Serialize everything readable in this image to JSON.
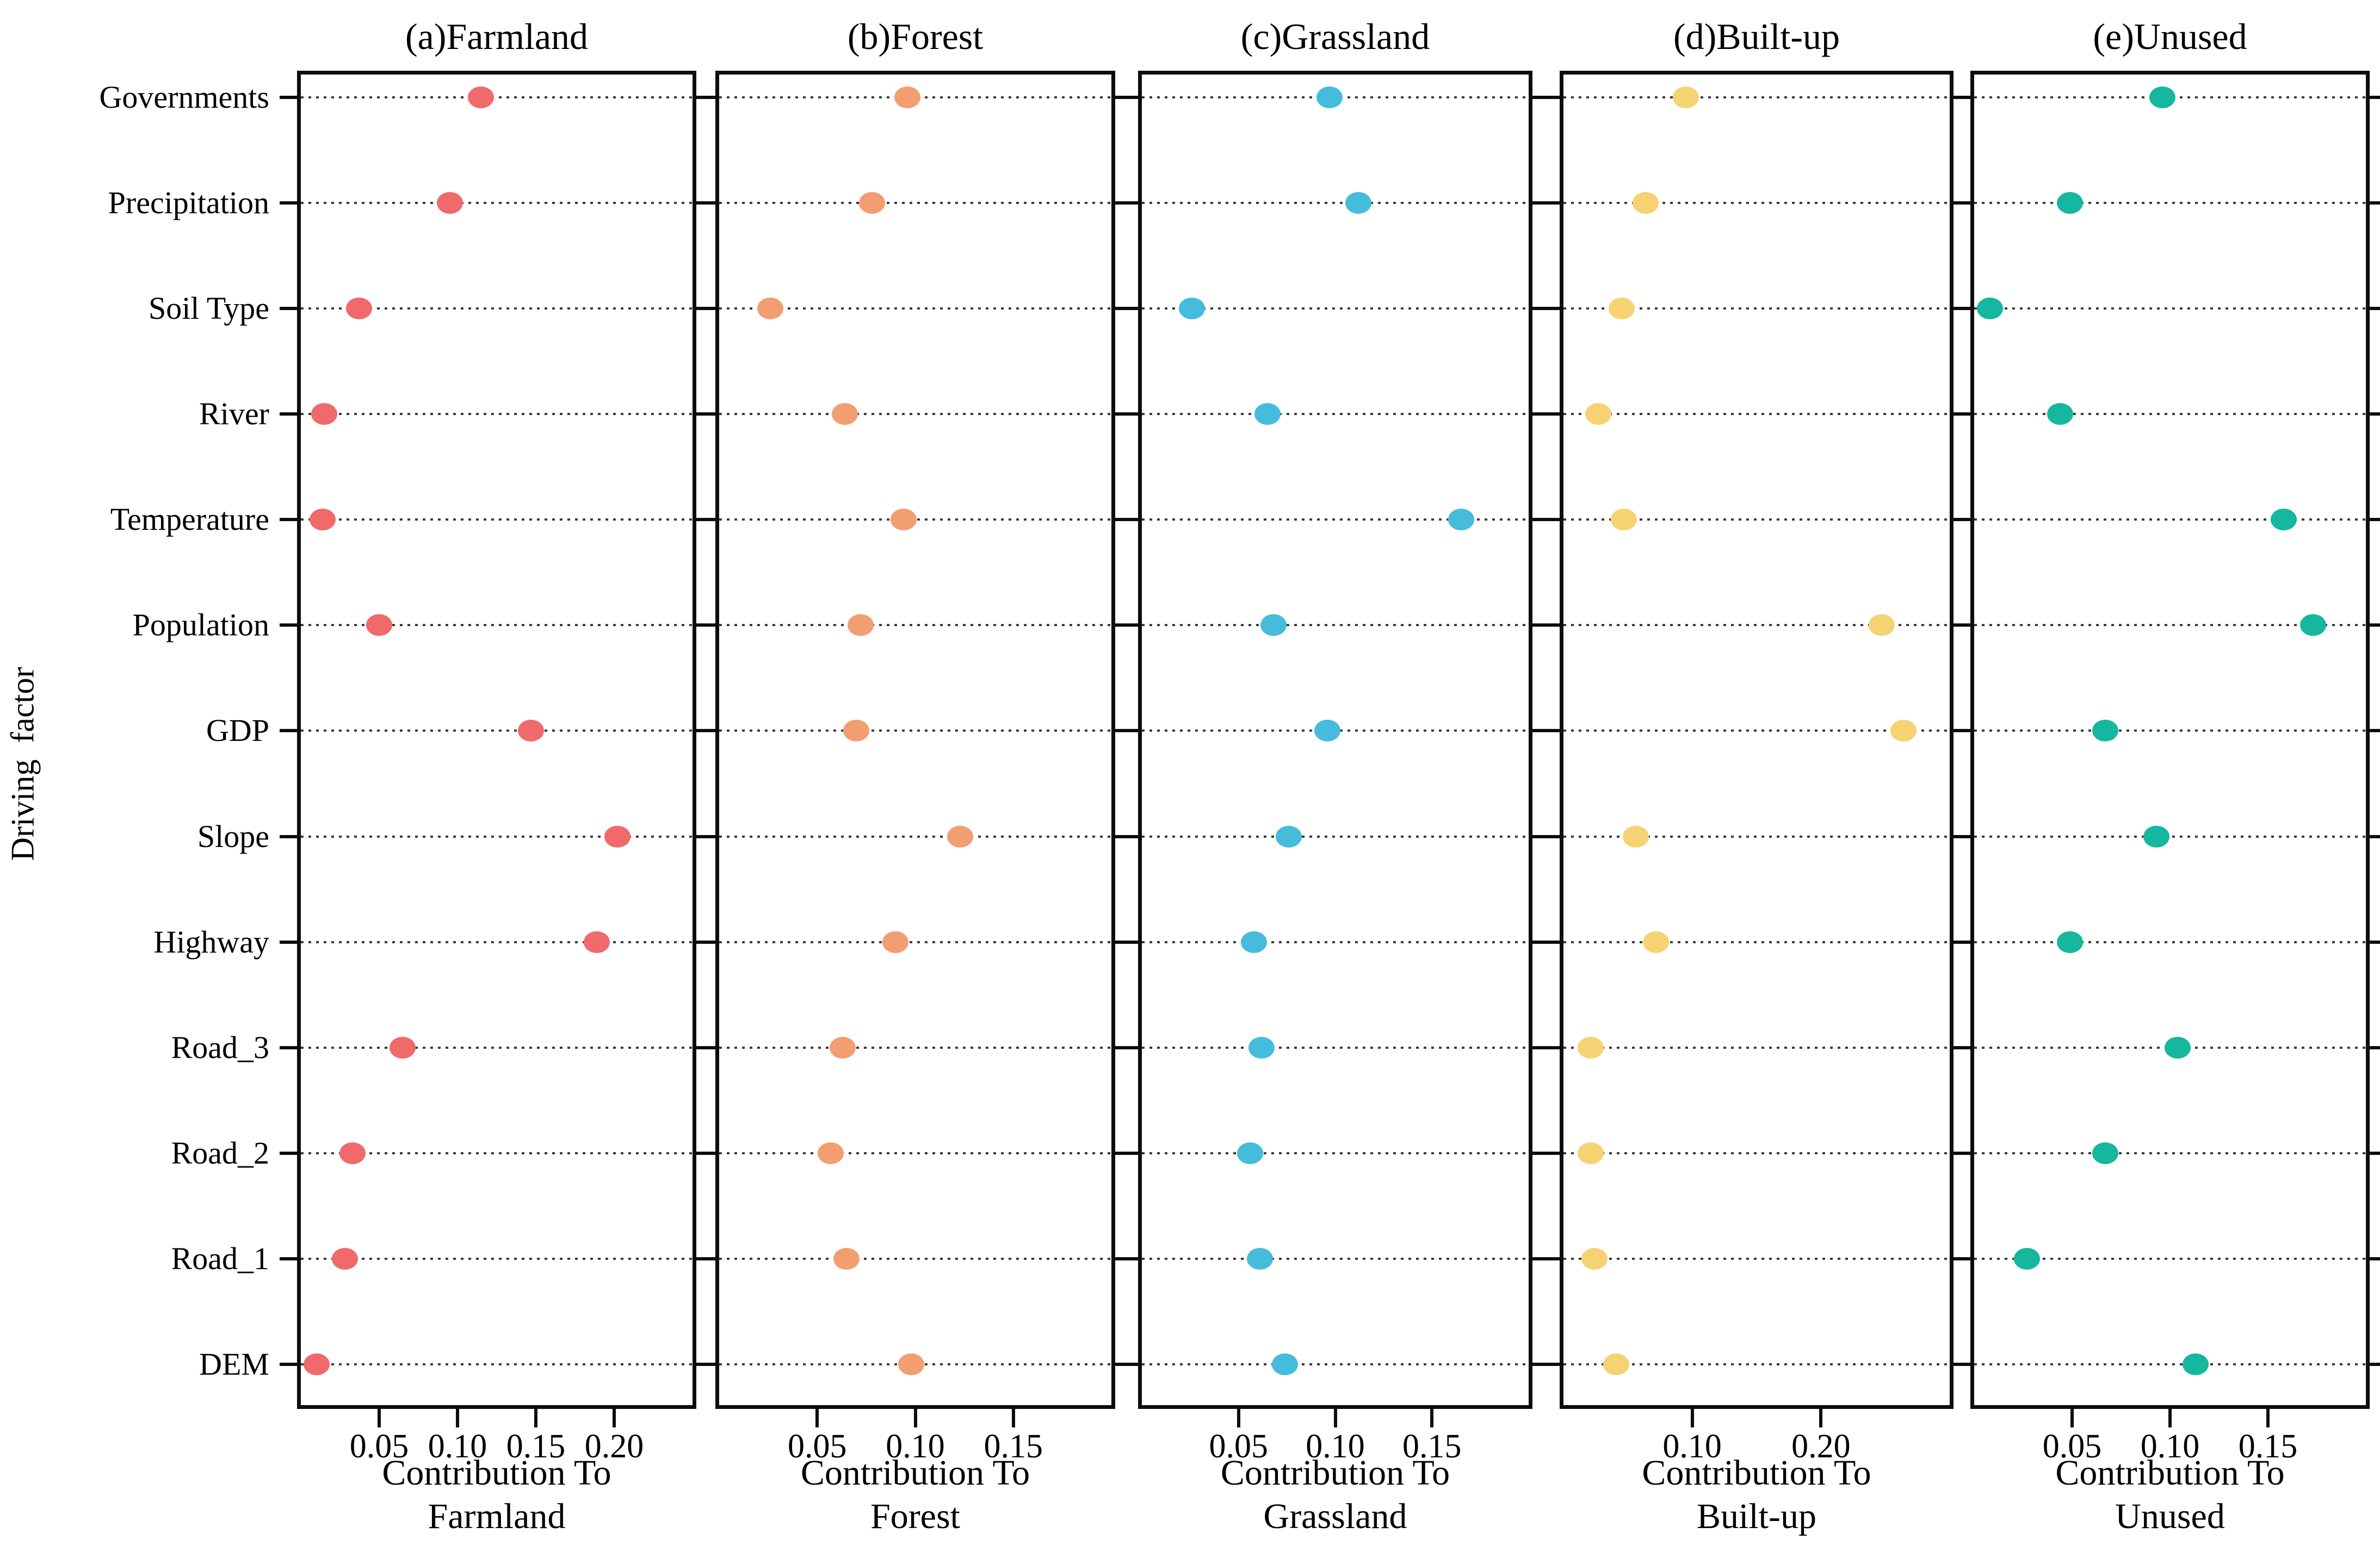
{
  "figure": {
    "ylabel": "Driving  factor",
    "categories": [
      "Governments",
      "Precipitation",
      "Soil Type",
      "River",
      "Temperature",
      "Population",
      "GDP",
      "Slope",
      "Highway",
      "Road_3",
      "Road_2",
      "Road_1",
      "DEM"
    ],
    "grid": "dotted-horizontal",
    "legend": "none"
  },
  "chart_data": [
    {
      "type": "scatter",
      "title": "(a)Farmland",
      "xlabel": "Contribution To\nFarmland",
      "marker_color": "#F0696B",
      "xlim": [
        0,
        0.25
      ],
      "xticks": [
        "0.05",
        "0.10",
        "0.15",
        "0.20"
      ],
      "xtick_values": [
        0.05,
        0.1,
        0.15,
        0.2
      ],
      "categories": [
        "Governments",
        "Precipitation",
        "Soil Type",
        "River",
        "Temperature",
        "Population",
        "GDP",
        "Slope",
        "Highway",
        "Road_3",
        "Road_2",
        "Road_1",
        "DEM"
      ],
      "values": [
        0.115,
        0.095,
        0.037,
        0.015,
        0.014,
        0.05,
        0.147,
        0.202,
        0.189,
        0.065,
        0.033,
        0.028,
        0.01
      ]
    },
    {
      "type": "scatter",
      "title": "(b)Forest",
      "xlabel": "Contribution To\nForest",
      "marker_color": "#F29E71",
      "xlim": [
        0,
        0.2
      ],
      "xticks": [
        "0.05",
        "0.10",
        "0.15"
      ],
      "xtick_values": [
        0.05,
        0.1,
        0.15
      ],
      "categories": [
        "Governments",
        "Precipitation",
        "Soil Type",
        "River",
        "Temperature",
        "Population",
        "GDP",
        "Slope",
        "Highway",
        "Road_3",
        "Road_2",
        "Road_1",
        "DEM"
      ],
      "values": [
        0.096,
        0.078,
        0.026,
        0.064,
        0.094,
        0.072,
        0.07,
        0.123,
        0.09,
        0.063,
        0.057,
        0.065,
        0.098
      ]
    },
    {
      "type": "scatter",
      "title": "(c)Grassland",
      "xlabel": "Contribution To\nGrassland",
      "marker_color": "#45BCDC",
      "xlim": [
        0,
        0.2
      ],
      "xticks": [
        "0.05",
        "0.10",
        "0.15"
      ],
      "xtick_values": [
        0.05,
        0.1,
        0.15
      ],
      "categories": [
        "Governments",
        "Precipitation",
        "Soil Type",
        "River",
        "Temperature",
        "Population",
        "GDP",
        "Slope",
        "Highway",
        "Road_3",
        "Road_2",
        "Road_1",
        "DEM"
      ],
      "values": [
        0.097,
        0.112,
        0.026,
        0.065,
        0.165,
        0.068,
        0.096,
        0.076,
        0.058,
        0.062,
        0.056,
        0.061,
        0.074
      ]
    },
    {
      "type": "scatter",
      "title": "(d)Built-up",
      "xlabel": "Contribution To\nBuilt-up",
      "marker_color": "#F6D273",
      "xlim": [
        0,
        0.3
      ],
      "xticks": [
        "0.10",
        "0.20"
      ],
      "xtick_values": [
        0.1,
        0.2
      ],
      "categories": [
        "Governments",
        "Precipitation",
        "Soil Type",
        "River",
        "Temperature",
        "Population",
        "GDP",
        "Slope",
        "Highway",
        "Road_3",
        "Road_2",
        "Road_1",
        "DEM"
      ],
      "values": [
        0.095,
        0.064,
        0.045,
        0.027,
        0.047,
        0.247,
        0.264,
        0.056,
        0.072,
        0.021,
        0.021,
        0.024,
        0.041
      ]
    },
    {
      "type": "scatter",
      "title": "(e)Unused",
      "xlabel": "Contribution To\nUnused",
      "marker_color": "#15B79E",
      "xlim": [
        0,
        0.2
      ],
      "xticks": [
        "0.05",
        "0.10",
        "0.15"
      ],
      "xtick_values": [
        0.05,
        0.1,
        0.15
      ],
      "categories": [
        "Governments",
        "Precipitation",
        "Soil Type",
        "River",
        "Temperature",
        "Population",
        "GDP",
        "Slope",
        "Highway",
        "Road_3",
        "Road_2",
        "Road_1",
        "DEM"
      ],
      "values": [
        0.096,
        0.049,
        0.008,
        0.044,
        0.158,
        0.173,
        0.067,
        0.093,
        0.049,
        0.104,
        0.067,
        0.027,
        0.113
      ]
    }
  ]
}
